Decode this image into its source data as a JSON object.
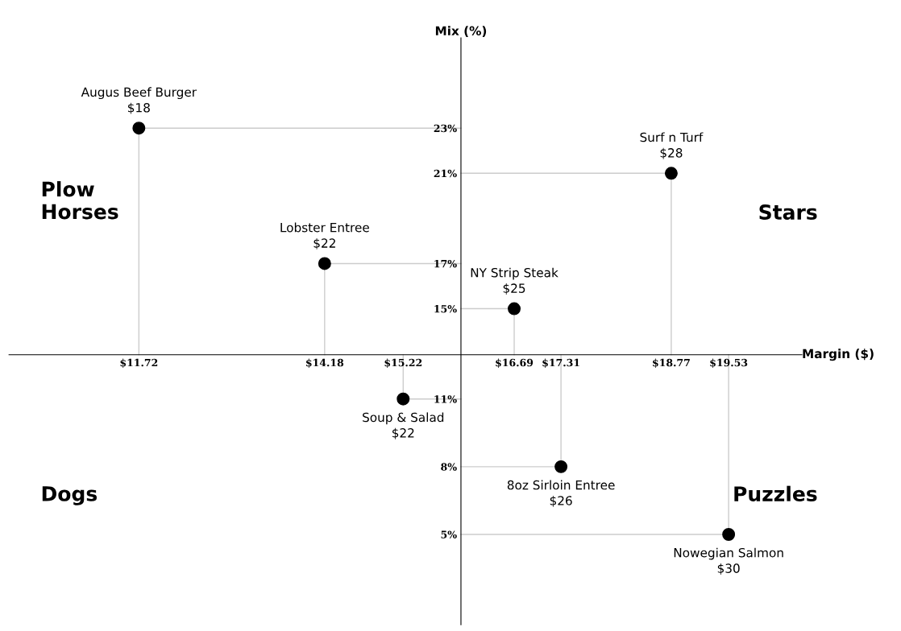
{
  "chart_data": {
    "type": "scatter",
    "xlabel": "Margin ($)",
    "ylabel": "Mix (%)",
    "x": [
      11.72,
      14.18,
      15.22,
      16.69,
      17.31,
      18.77,
      19.53
    ],
    "values": [
      23,
      17,
      11,
      15,
      8,
      21,
      5
    ],
    "color": "#000000",
    "marker": "circle",
    "xlim": [
      10,
      20.5
    ],
    "ylim": [
      1,
      27
    ],
    "xticks": [
      {
        "value": 11.72,
        "label": "$11.72"
      },
      {
        "value": 14.18,
        "label": "$14.18"
      },
      {
        "value": 15.22,
        "label": "$15.22"
      },
      {
        "value": 16.69,
        "label": "$16.69"
      },
      {
        "value": 17.31,
        "label": "$17.31"
      },
      {
        "value": 18.77,
        "label": "$18.77"
      },
      {
        "value": 19.53,
        "label": "$19.53"
      }
    ],
    "yticks": [
      {
        "value": 23,
        "label": "23%"
      },
      {
        "value": 21,
        "label": "21%"
      },
      {
        "value": 17,
        "label": "17%"
      },
      {
        "value": 15,
        "label": "15%"
      },
      {
        "value": 11,
        "label": "11%"
      },
      {
        "value": 8,
        "label": "8%"
      },
      {
        "value": 5,
        "label": "5%"
      }
    ],
    "annotations": [
      {
        "text": "Augus Beef Burger\n$18",
        "x": 11.72,
        "y": 23
      },
      {
        "text": "Lobster Entree\n$22",
        "x": 14.18,
        "y": 17
      },
      {
        "text": "Soup & Salad\n$22",
        "x": 15.22,
        "y": 11
      },
      {
        "text": "NY Strip Steak\n$25",
        "x": 16.69,
        "y": 15
      },
      {
        "text": "8oz Sirloin Entree\n$26",
        "x": 17.31,
        "y": 8
      },
      {
        "text": "Surf n Turf\n$28",
        "x": 18.77,
        "y": 21
      },
      {
        "text": "Nowegian Salmon\n$30",
        "x": 19.53,
        "y": 5
      },
      "Plow\nHorses",
      "Stars",
      "Dogs",
      "Puzzles"
    ],
    "grid": false,
    "legend": false
  }
}
